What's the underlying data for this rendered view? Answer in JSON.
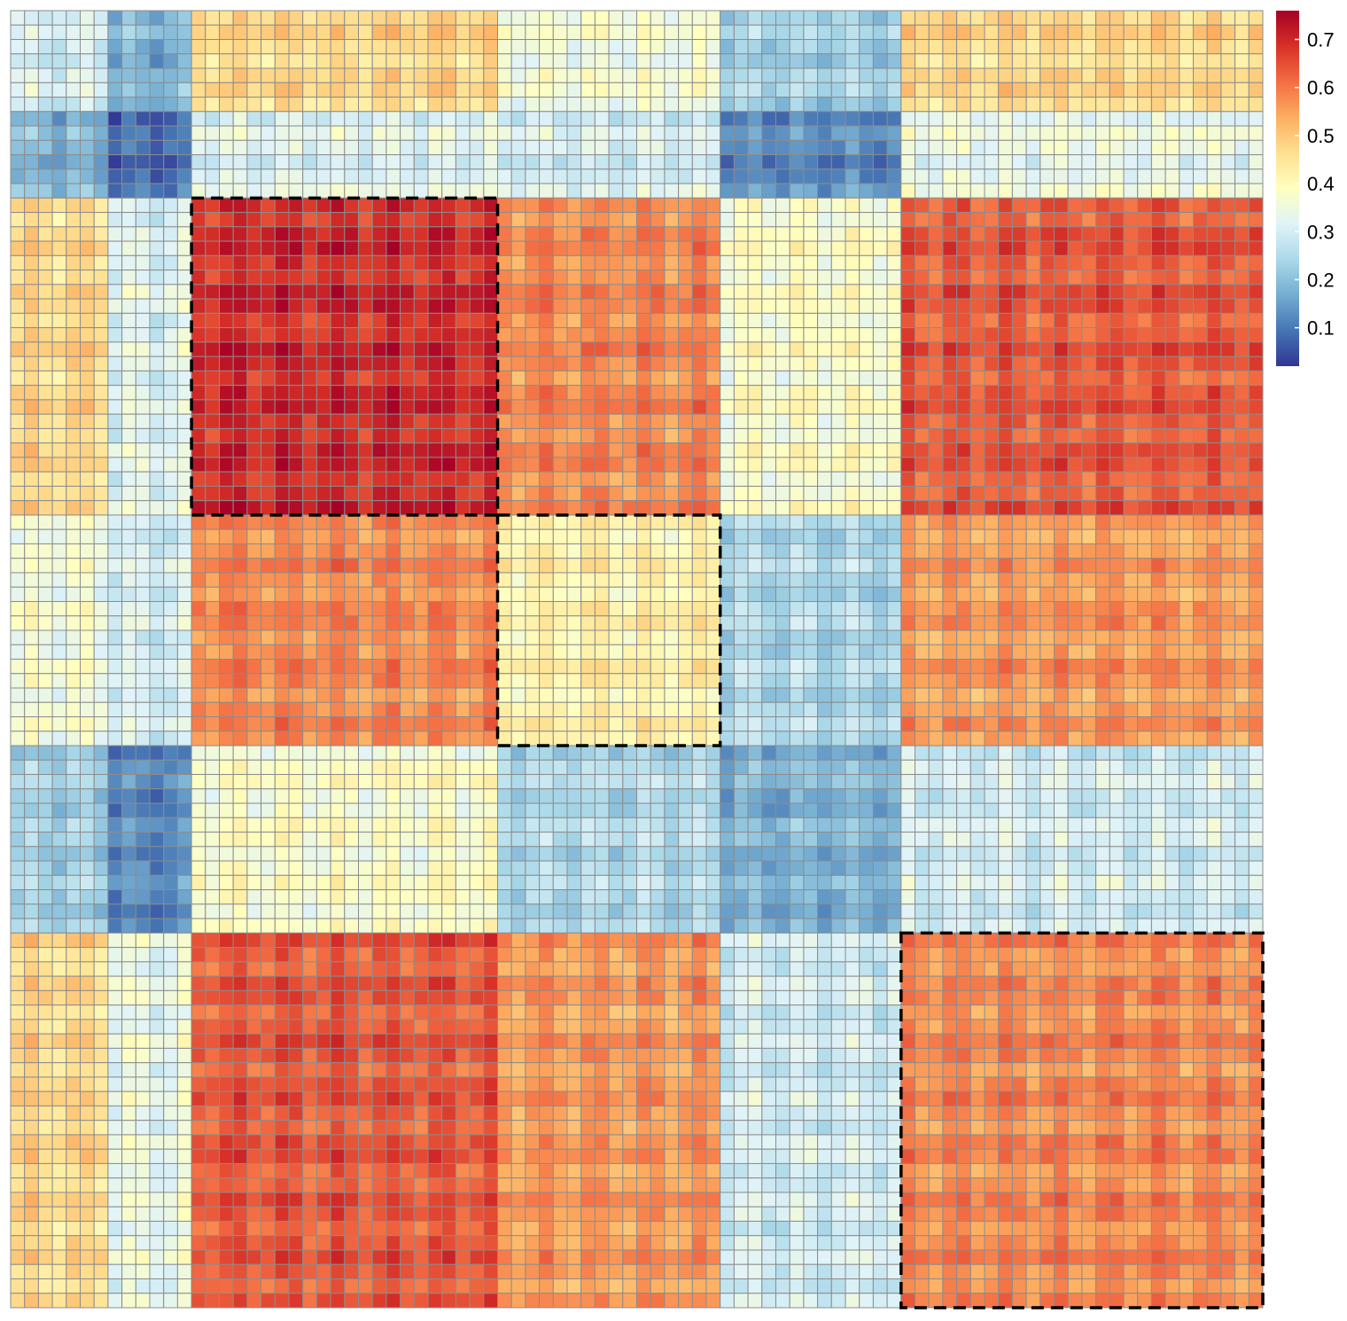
{
  "chart_data": {
    "type": "heatmap",
    "title": "",
    "xlabel": "",
    "ylabel": "",
    "n_rows": 90,
    "n_cols": 90,
    "groups": [
      {
        "index": 1,
        "span": 7,
        "within": 0.3,
        "note": "light blue block"
      },
      {
        "index": 2,
        "span": 6,
        "within": 0.08,
        "note": "dark blue block"
      },
      {
        "index": 3,
        "span": 22,
        "within": 0.7,
        "note": "dark red block (outlined)"
      },
      {
        "index": 4,
        "span": 16,
        "within": 0.42,
        "note": "pale yellow block (outlined)"
      },
      {
        "index": 5,
        "span": 13,
        "within": 0.18,
        "note": "blue block"
      },
      {
        "index": 6,
        "span": 26,
        "within": 0.58,
        "note": "orange block (outlined)"
      }
    ],
    "block_means": [
      [
        0.3,
        0.18,
        0.47,
        0.36,
        0.23,
        0.47
      ],
      [
        0.18,
        0.08,
        0.32,
        0.3,
        0.12,
        0.34
      ],
      [
        0.47,
        0.32,
        0.7,
        0.58,
        0.38,
        0.64
      ],
      [
        0.36,
        0.3,
        0.58,
        0.42,
        0.25,
        0.56
      ],
      [
        0.23,
        0.12,
        0.38,
        0.25,
        0.18,
        0.3
      ],
      [
        0.47,
        0.34,
        0.64,
        0.56,
        0.3,
        0.58
      ]
    ],
    "outlined_blocks": [
      3,
      4,
      6
    ],
    "colorbar": {
      "min": 0.02,
      "max": 0.76,
      "ticks": [
        0.1,
        0.2,
        0.3,
        0.4,
        0.5,
        0.6,
        0.7
      ],
      "tick_labels": [
        "0.1",
        "0.2",
        "0.3",
        "0.4",
        "0.5",
        "0.6",
        "0.7"
      ],
      "palette": [
        "#313695",
        "#4575B4",
        "#74ADD1",
        "#ABD9E9",
        "#E0F3F8",
        "#FFFFBF",
        "#FEE090",
        "#FDAE61",
        "#F46D43",
        "#D73027",
        "#A50026"
      ]
    },
    "cell_border_color": "#8C8C8C",
    "outline_color": "#000000"
  }
}
